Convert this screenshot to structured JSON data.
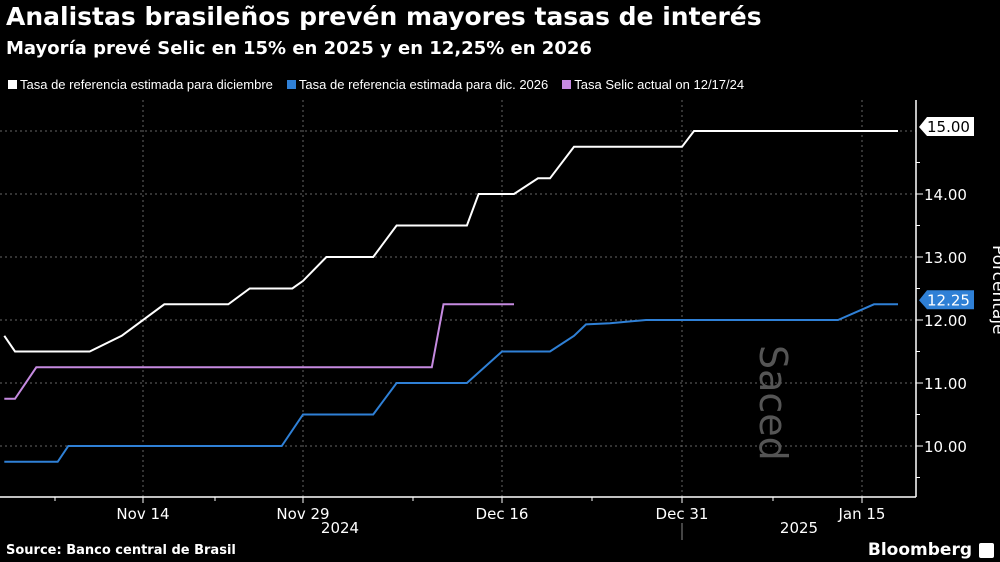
{
  "title": "Analistas brasileños prevén mayores tasas de interés",
  "subtitle": "Mayoría prevé Selic en 15% en 2025 y en 12,25% en 2026",
  "source": "Source: Banco central de Brasil",
  "brand": "Bloomberg",
  "watermark": "Saced",
  "chart_data": {
    "type": "line",
    "ylabel": "Porcentaje",
    "ylim": [
      9.2,
      15.5
    ],
    "yticks": [
      "10.00",
      "11.00",
      "12.00",
      "13.00",
      "14.00"
    ],
    "ytick_values": [
      10,
      11,
      12,
      13,
      14
    ],
    "xticks": [
      {
        "label": "Nov 14",
        "date": "2024-11-14"
      },
      {
        "label": "Nov 29",
        "date": "2024-11-29"
      },
      {
        "label": "Dec 16",
        "date": "2024-12-16"
      },
      {
        "label": "Dec 31",
        "date": "2024-12-31"
      },
      {
        "label": "Jan 15",
        "date": "2025-01-15"
      }
    ],
    "years": [
      "2024",
      "2025"
    ],
    "grid": true,
    "legend_position": "top",
    "series": [
      {
        "name": "Tasa de referencia estimada para diciembre",
        "color": "#ffffff",
        "last_label": "15.00",
        "points": [
          [
            "2024-11-01",
            11.75
          ],
          [
            "2024-11-02",
            11.5
          ],
          [
            "2024-11-09",
            11.5
          ],
          [
            "2024-11-12",
            11.75
          ],
          [
            "2024-11-16",
            12.25
          ],
          [
            "2024-11-22",
            12.25
          ],
          [
            "2024-11-24",
            12.5
          ],
          [
            "2024-11-28",
            12.5
          ],
          [
            "2024-11-29",
            12.62
          ],
          [
            "2024-12-01",
            13
          ],
          [
            "2024-12-05",
            13
          ],
          [
            "2024-12-07",
            13.5
          ],
          [
            "2024-12-13",
            13.5
          ],
          [
            "2024-12-14",
            14
          ],
          [
            "2024-12-17",
            14
          ],
          [
            "2024-12-19",
            14.25
          ],
          [
            "2024-12-20",
            14.25
          ],
          [
            "2024-12-22",
            14.75
          ],
          [
            "2024-12-31",
            14.75
          ],
          [
            "2025-01-01",
            15
          ],
          [
            "2025-01-18",
            15
          ]
        ]
      },
      {
        "name": "Tasa de referencia estimada para dic. 2026",
        "color": "#2f80d6",
        "last_label": "12.25",
        "points": [
          [
            "2024-11-01",
            9.75
          ],
          [
            "2024-11-06",
            9.75
          ],
          [
            "2024-11-07",
            10
          ],
          [
            "2024-11-27",
            10
          ],
          [
            "2024-11-29",
            10.5
          ],
          [
            "2024-12-05",
            10.5
          ],
          [
            "2024-12-07",
            11
          ],
          [
            "2024-12-13",
            11
          ],
          [
            "2024-12-16",
            11.5
          ],
          [
            "2024-12-20",
            11.5
          ],
          [
            "2024-12-22",
            11.75
          ],
          [
            "2024-12-23",
            11.93
          ],
          [
            "2024-12-25",
            11.95
          ],
          [
            "2024-12-28",
            12
          ],
          [
            "2025-01-13",
            12
          ],
          [
            "2025-01-16",
            12.25
          ],
          [
            "2025-01-18",
            12.25
          ]
        ]
      },
      {
        "name": "Tasa Selic actual on 12/17/24",
        "color": "#c58ae0",
        "points": [
          [
            "2024-11-01",
            10.75
          ],
          [
            "2024-11-02",
            10.75
          ],
          [
            "2024-11-04",
            11.25
          ],
          [
            "2024-12-10",
            11.25
          ],
          [
            "2024-12-11",
            12.25
          ],
          [
            "2024-12-17",
            12.25
          ]
        ]
      }
    ]
  }
}
